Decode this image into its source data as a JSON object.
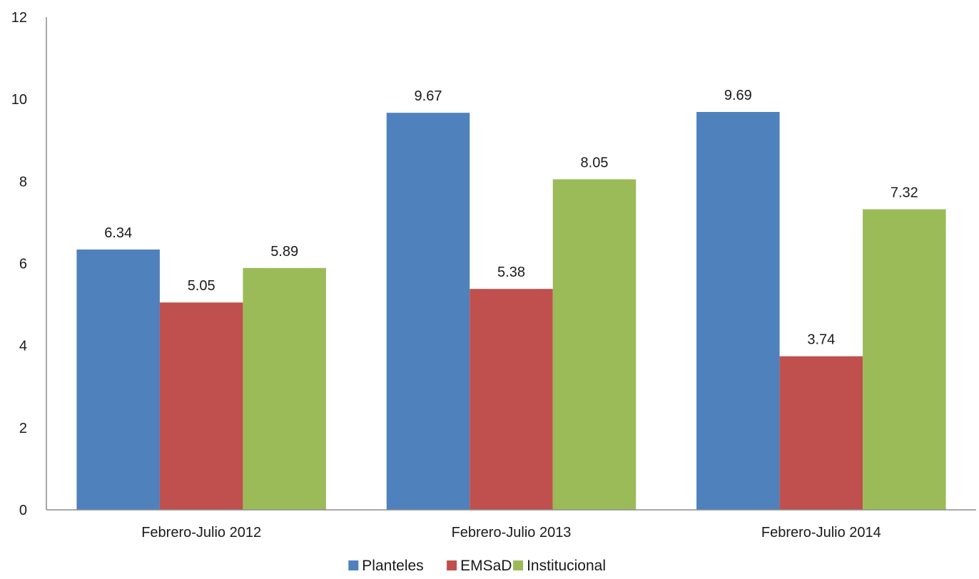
{
  "chart_data": {
    "type": "bar",
    "categories": [
      "Febrero-Julio 2012",
      "Febrero-Julio 2013",
      "Febrero-Julio 2014"
    ],
    "series": [
      {
        "name": "Planteles",
        "values": [
          6.34,
          9.67,
          9.69
        ],
        "color": "#4f81bd"
      },
      {
        "name": "EMSaD",
        "values": [
          5.05,
          5.38,
          3.74
        ],
        "color": "#c0504d"
      },
      {
        "name": "Institucional",
        "values": [
          5.89,
          8.05,
          7.32
        ],
        "color": "#9bbb59"
      }
    ],
    "y_ticks": [
      "0",
      "2",
      "4",
      "6",
      "8",
      "10",
      "12"
    ],
    "ylim": [
      0,
      12
    ],
    "title": "",
    "xlabel": "",
    "ylabel": "",
    "grid": false,
    "legend_position": "bottom",
    "data_labels": true
  }
}
